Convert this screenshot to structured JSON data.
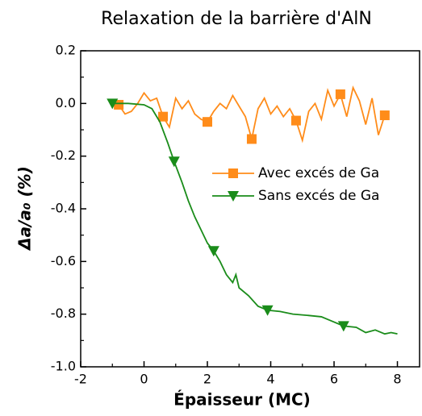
{
  "chart_data": {
    "type": "line",
    "title": "Relaxation de la barrière d'AlN",
    "xlabel": "Épaisseur (MC)",
    "ylabel": "Δa/a₀ (%)",
    "xlim": [
      -2,
      8.7
    ],
    "xticks": [
      -2,
      0,
      2,
      4,
      6,
      8
    ],
    "ylim": [
      -1.0,
      0.2
    ],
    "yticks": [
      0.2,
      {
        "value": 0.0,
        "label": "0.0"
      },
      -0.2,
      -0.4,
      -0.6,
      -0.8,
      {
        "value": -1.0,
        "label": "-1.0"
      }
    ],
    "legend": "right",
    "series": [
      {
        "name": "Avec excés de Ga",
        "color": "#ff8c1a",
        "marker": "square",
        "x": [
          -0.8,
          -0.6,
          -0.4,
          -0.2,
          0.0,
          0.2,
          0.4,
          0.6,
          0.8,
          1.0,
          1.2,
          1.4,
          1.6,
          1.8,
          2.0,
          2.2,
          2.4,
          2.6,
          2.8,
          3.0,
          3.2,
          3.4,
          3.6,
          3.8,
          4.0,
          4.2,
          4.4,
          4.6,
          4.8,
          5.0,
          5.2,
          5.4,
          5.6,
          5.8,
          6.0,
          6.2,
          6.4,
          6.6,
          6.8,
          7.0,
          7.2,
          7.4,
          7.6
        ],
        "values": [
          -0.005,
          -0.04,
          -0.03,
          0.0,
          0.04,
          0.01,
          0.02,
          -0.05,
          -0.09,
          0.02,
          -0.02,
          0.01,
          -0.04,
          -0.06,
          -0.07,
          -0.03,
          0.0,
          -0.02,
          0.03,
          -0.01,
          -0.05,
          -0.135,
          -0.02,
          0.02,
          -0.04,
          -0.01,
          -0.05,
          -0.02,
          -0.065,
          -0.14,
          -0.03,
          0.0,
          -0.06,
          0.05,
          -0.01,
          0.035,
          -0.05,
          0.06,
          0.01,
          -0.08,
          0.02,
          -0.12,
          -0.045
        ],
        "markevery": [
          0,
          7,
          14,
          21,
          28,
          35,
          42
        ]
      },
      {
        "name": "Sans excés de Ga",
        "color": "#1a8c1a",
        "marker": "triangle-down",
        "x": [
          -1.0,
          -0.5,
          0.0,
          0.25,
          0.5,
          0.75,
          0.95,
          1.2,
          1.4,
          1.6,
          1.8,
          2.0,
          2.2,
          2.4,
          2.6,
          2.8,
          2.9,
          3.0,
          3.3,
          3.6,
          3.9,
          4.3,
          4.7,
          5.2,
          5.6,
          5.9,
          6.3,
          6.7,
          7.0,
          7.3,
          7.6,
          7.8,
          8.0
        ],
        "values": [
          0.0,
          0.0,
          -0.005,
          -0.02,
          -0.07,
          -0.15,
          -0.22,
          -0.3,
          -0.37,
          -0.43,
          -0.48,
          -0.53,
          -0.56,
          -0.6,
          -0.65,
          -0.68,
          -0.65,
          -0.7,
          -0.73,
          -0.77,
          -0.785,
          -0.79,
          -0.8,
          -0.805,
          -0.81,
          -0.825,
          -0.845,
          -0.85,
          -0.87,
          -0.86,
          -0.875,
          -0.87,
          -0.875
        ],
        "markevery": [
          0,
          6,
          12,
          20,
          26
        ]
      }
    ]
  }
}
